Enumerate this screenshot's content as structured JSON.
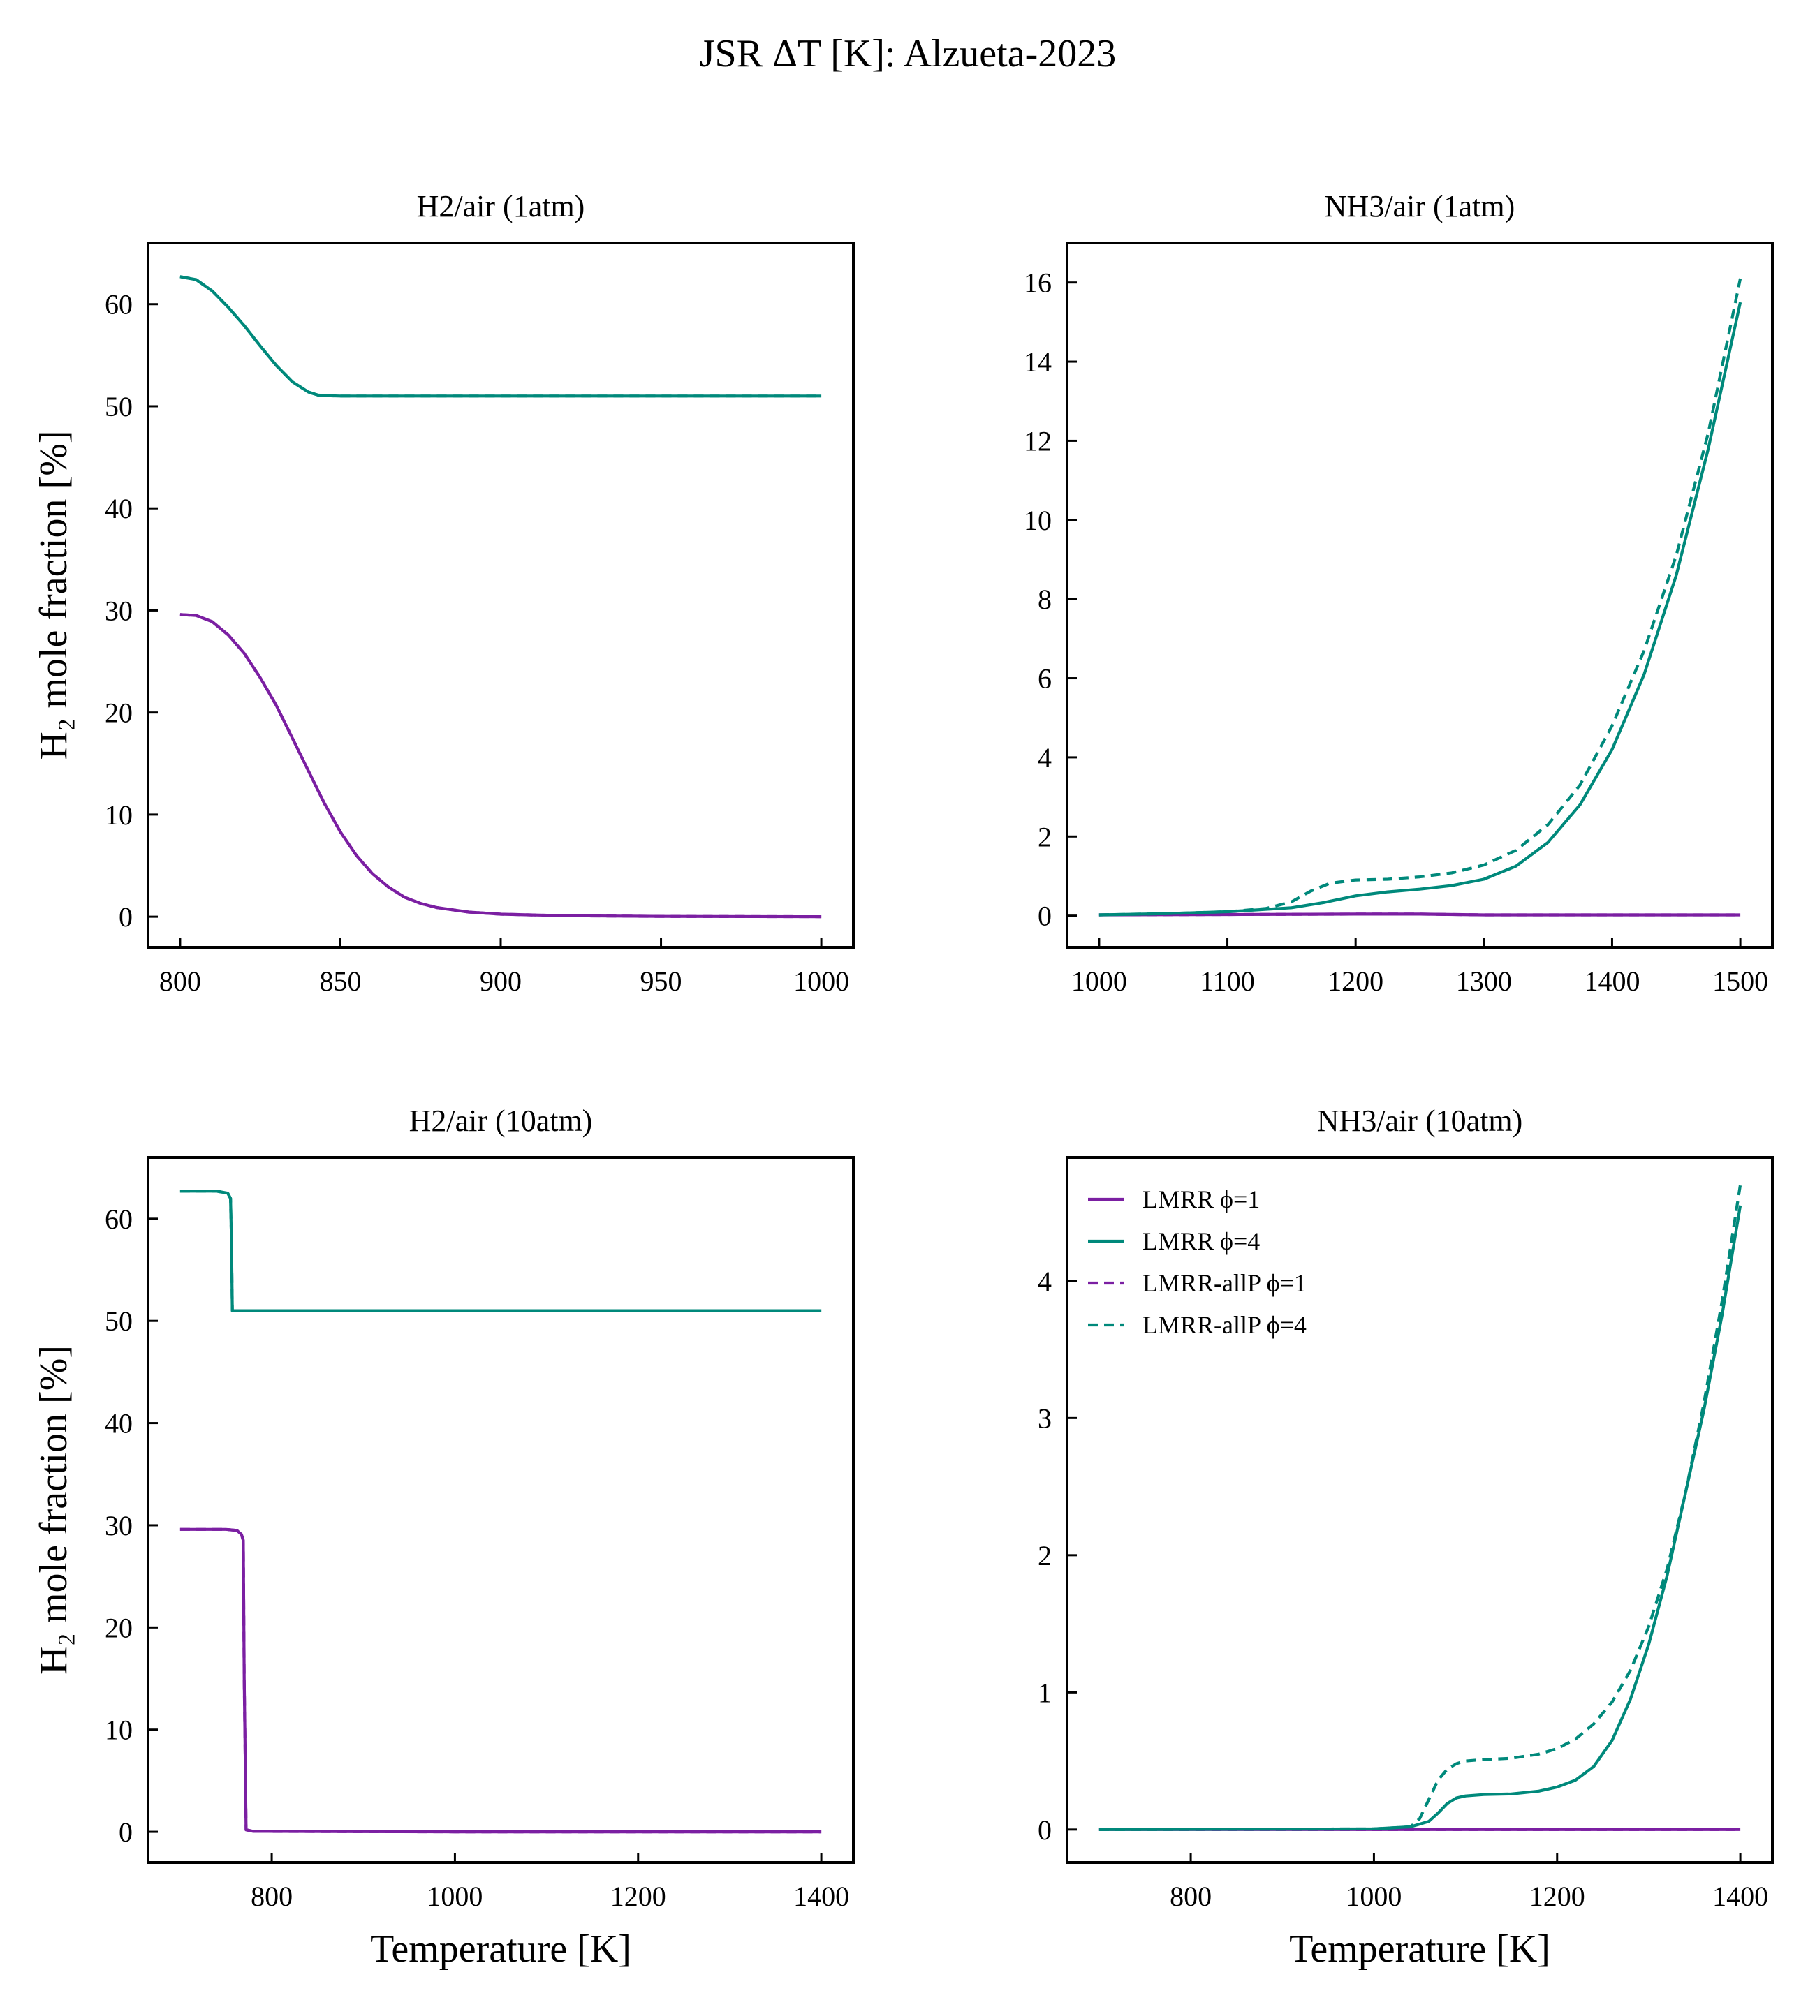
{
  "figure_title": "JSR ΔT [K]: Alzueta-2023",
  "colors": {
    "phi1": "#7b1fa2",
    "phi4": "#00897b"
  },
  "legend": {
    "placement": "upper-left",
    "panel": 3,
    "entries": [
      {
        "label": "LMRR ϕ=1",
        "color": "#7b1fa2",
        "dash": false
      },
      {
        "label": "LMRR ϕ=4",
        "color": "#00897b",
        "dash": false
      },
      {
        "label": "LMRR-allP ϕ=1",
        "color": "#7b1fa2",
        "dash": true
      },
      {
        "label": "LMRR-allP ϕ=4",
        "color": "#00897b",
        "dash": true
      }
    ]
  },
  "chart_data": [
    {
      "type": "line",
      "title": "H2/air (1atm)",
      "xlabel": "",
      "ylabel": "H₂ mole fraction [%]",
      "xlim": [
        790,
        1010
      ],
      "ylim": [
        -3,
        66
      ],
      "xticks": [
        800,
        850,
        900,
        950,
        1000
      ],
      "yticks": [
        0,
        10,
        20,
        30,
        40,
        50,
        60
      ],
      "series": [
        {
          "name": "LMRR ϕ=4",
          "color": "#00897b",
          "dash": false,
          "x": [
            800,
            805,
            810,
            815,
            820,
            825,
            830,
            835,
            840,
            843,
            845,
            850,
            860,
            900,
            950,
            1000
          ],
          "y": [
            62.7,
            62.4,
            61.3,
            59.7,
            57.9,
            55.9,
            54.0,
            52.4,
            51.4,
            51.1,
            51.05,
            51.0,
            51.0,
            51.0,
            51.0,
            51.0
          ]
        },
        {
          "name": "LMRR-allP ϕ=4",
          "color": "#00897b",
          "dash": true,
          "x": [
            800,
            805,
            810,
            815,
            820,
            825,
            830,
            835,
            840,
            843,
            845,
            850,
            860,
            900,
            950,
            1000
          ],
          "y": [
            62.7,
            62.4,
            61.3,
            59.7,
            57.9,
            55.9,
            54.0,
            52.4,
            51.4,
            51.1,
            51.05,
            51.0,
            51.0,
            51.0,
            51.0,
            51.0
          ]
        },
        {
          "name": "LMRR ϕ=1",
          "color": "#7b1fa2",
          "dash": false,
          "x": [
            800,
            805,
            810,
            815,
            820,
            825,
            830,
            835,
            840,
            845,
            850,
            855,
            860,
            865,
            870,
            875,
            880,
            890,
            900,
            920,
            950,
            1000
          ],
          "y": [
            29.6,
            29.5,
            28.9,
            27.6,
            25.8,
            23.4,
            20.7,
            17.5,
            14.3,
            11.1,
            8.3,
            6.0,
            4.2,
            2.9,
            1.9,
            1.3,
            0.9,
            0.45,
            0.25,
            0.1,
            0.03,
            0.0
          ]
        },
        {
          "name": "LMRR-allP ϕ=1",
          "color": "#7b1fa2",
          "dash": true,
          "x": [
            800,
            805,
            810,
            815,
            820,
            825,
            830,
            835,
            840,
            845,
            850,
            855,
            860,
            865,
            870,
            875,
            880,
            890,
            900,
            920,
            950,
            1000
          ],
          "y": [
            29.6,
            29.5,
            28.9,
            27.6,
            25.8,
            23.4,
            20.7,
            17.5,
            14.3,
            11.1,
            8.3,
            6.0,
            4.2,
            2.9,
            1.9,
            1.3,
            0.9,
            0.45,
            0.25,
            0.1,
            0.03,
            0.0
          ]
        }
      ]
    },
    {
      "type": "line",
      "title": "NH3/air (1atm)",
      "xlabel": "",
      "ylabel": "",
      "xlim": [
        975,
        1525
      ],
      "ylim": [
        -0.8,
        17.0
      ],
      "xticks": [
        1000,
        1100,
        1200,
        1300,
        1400,
        1500
      ],
      "yticks": [
        0,
        2,
        4,
        6,
        8,
        10,
        12,
        14,
        16
      ],
      "series": [
        {
          "name": "LMRR ϕ=1",
          "color": "#7b1fa2",
          "dash": false,
          "x": [
            1000,
            1100,
            1200,
            1250,
            1300,
            1400,
            1500
          ],
          "y": [
            0.02,
            0.03,
            0.04,
            0.04,
            0.02,
            0.02,
            0.02
          ]
        },
        {
          "name": "LMRR-allP ϕ=1",
          "color": "#7b1fa2",
          "dash": true,
          "x": [
            1000,
            1100,
            1200,
            1250,
            1300,
            1400,
            1500
          ],
          "y": [
            0.02,
            0.03,
            0.04,
            0.04,
            0.02,
            0.02,
            0.02
          ]
        },
        {
          "name": "LMRR ϕ=4",
          "color": "#00897b",
          "dash": false,
          "x": [
            1000,
            1050,
            1100,
            1150,
            1175,
            1200,
            1225,
            1250,
            1275,
            1300,
            1325,
            1350,
            1375,
            1400,
            1425,
            1450,
            1475,
            1500
          ],
          "y": [
            0.02,
            0.05,
            0.1,
            0.2,
            0.33,
            0.5,
            0.6,
            0.67,
            0.76,
            0.92,
            1.25,
            1.85,
            2.8,
            4.2,
            6.1,
            8.6,
            11.8,
            15.5
          ]
        },
        {
          "name": "LMRR-allP ϕ=4",
          "color": "#00897b",
          "dash": true,
          "x": [
            1000,
            1050,
            1100,
            1130,
            1150,
            1165,
            1180,
            1200,
            1225,
            1250,
            1275,
            1300,
            1325,
            1350,
            1375,
            1400,
            1425,
            1450,
            1475,
            1500
          ],
          "y": [
            0.02,
            0.05,
            0.1,
            0.18,
            0.35,
            0.62,
            0.82,
            0.9,
            0.92,
            0.98,
            1.08,
            1.28,
            1.65,
            2.3,
            3.3,
            4.8,
            6.7,
            9.1,
            12.2,
            16.1
          ]
        }
      ]
    },
    {
      "type": "line",
      "title": "H2/air (10atm)",
      "xlabel": "Temperature [K]",
      "ylabel": "H₂ mole fraction [%]",
      "xlim": [
        665,
        1435
      ],
      "ylim": [
        -3,
        66
      ],
      "xticks": [
        800,
        1000,
        1200,
        1400
      ],
      "yticks": [
        0,
        10,
        20,
        30,
        40,
        50,
        60
      ],
      "series": [
        {
          "name": "LMRR ϕ=4",
          "color": "#00897b",
          "dash": false,
          "x": [
            700,
            740,
            752,
            755,
            756,
            757,
            760,
            1000,
            1400
          ],
          "y": [
            62.7,
            62.7,
            62.5,
            62.0,
            58.0,
            51.0,
            51.0,
            51.0,
            51.0
          ]
        },
        {
          "name": "LMRR-allP ϕ=4",
          "color": "#00897b",
          "dash": true,
          "x": [
            700,
            740,
            752,
            755,
            756,
            757,
            760,
            1000,
            1400
          ],
          "y": [
            62.7,
            62.7,
            62.5,
            62.0,
            58.0,
            51.0,
            51.0,
            51.0,
            51.0
          ]
        },
        {
          "name": "LMRR ϕ=1",
          "color": "#7b1fa2",
          "dash": false,
          "x": [
            700,
            750,
            762,
            767,
            769,
            770,
            772,
            780,
            1000,
            1400
          ],
          "y": [
            29.6,
            29.6,
            29.5,
            29.1,
            28.5,
            15.0,
            0.2,
            0.05,
            0.0,
            0.0
          ]
        },
        {
          "name": "LMRR-allP ϕ=1",
          "color": "#7b1fa2",
          "dash": true,
          "x": [
            700,
            750,
            762,
            767,
            769,
            770,
            772,
            780,
            1000,
            1400
          ],
          "y": [
            29.6,
            29.6,
            29.5,
            29.1,
            28.5,
            15.0,
            0.2,
            0.05,
            0.0,
            0.0
          ]
        }
      ]
    },
    {
      "type": "line",
      "title": "NH3/air (10atm)",
      "xlabel": "Temperature [K]",
      "ylabel": "",
      "xlim": [
        665,
        1435
      ],
      "ylim": [
        -0.24,
        4.9
      ],
      "xticks": [
        800,
        1000,
        1200,
        1400
      ],
      "yticks": [
        0,
        1,
        2,
        3,
        4
      ],
      "series": [
        {
          "name": "LMRR ϕ=1",
          "color": "#7b1fa2",
          "dash": false,
          "x": [
            700,
            1000,
            1200,
            1400
          ],
          "y": [
            0.0,
            0.0,
            0.0,
            0.0
          ]
        },
        {
          "name": "LMRR-allP ϕ=1",
          "color": "#7b1fa2",
          "dash": true,
          "x": [
            700,
            1000,
            1200,
            1400
          ],
          "y": [
            0.0,
            0.0,
            0.0,
            0.0
          ]
        },
        {
          "name": "LMRR ϕ=4",
          "color": "#00897b",
          "dash": false,
          "x": [
            700,
            1000,
            1040,
            1060,
            1070,
            1080,
            1090,
            1100,
            1120,
            1150,
            1180,
            1200,
            1220,
            1240,
            1260,
            1280,
            1300,
            1320,
            1340,
            1360,
            1380,
            1400
          ],
          "y": [
            0.0,
            0.005,
            0.02,
            0.06,
            0.12,
            0.19,
            0.23,
            0.245,
            0.255,
            0.26,
            0.28,
            0.31,
            0.36,
            0.46,
            0.65,
            0.95,
            1.35,
            1.85,
            2.45,
            3.05,
            3.75,
            4.55
          ]
        },
        {
          "name": "LMRR-allP ϕ=4",
          "color": "#00897b",
          "dash": true,
          "x": [
            700,
            1000,
            1040,
            1050,
            1060,
            1070,
            1080,
            1090,
            1100,
            1120,
            1150,
            1180,
            1200,
            1220,
            1240,
            1260,
            1280,
            1300,
            1320,
            1340,
            1360,
            1380,
            1400
          ],
          "y": [
            0.0,
            0.005,
            0.02,
            0.08,
            0.22,
            0.36,
            0.44,
            0.48,
            0.5,
            0.51,
            0.52,
            0.55,
            0.59,
            0.66,
            0.77,
            0.93,
            1.16,
            1.48,
            1.9,
            2.45,
            3.1,
            3.85,
            4.7
          ]
        }
      ]
    }
  ]
}
